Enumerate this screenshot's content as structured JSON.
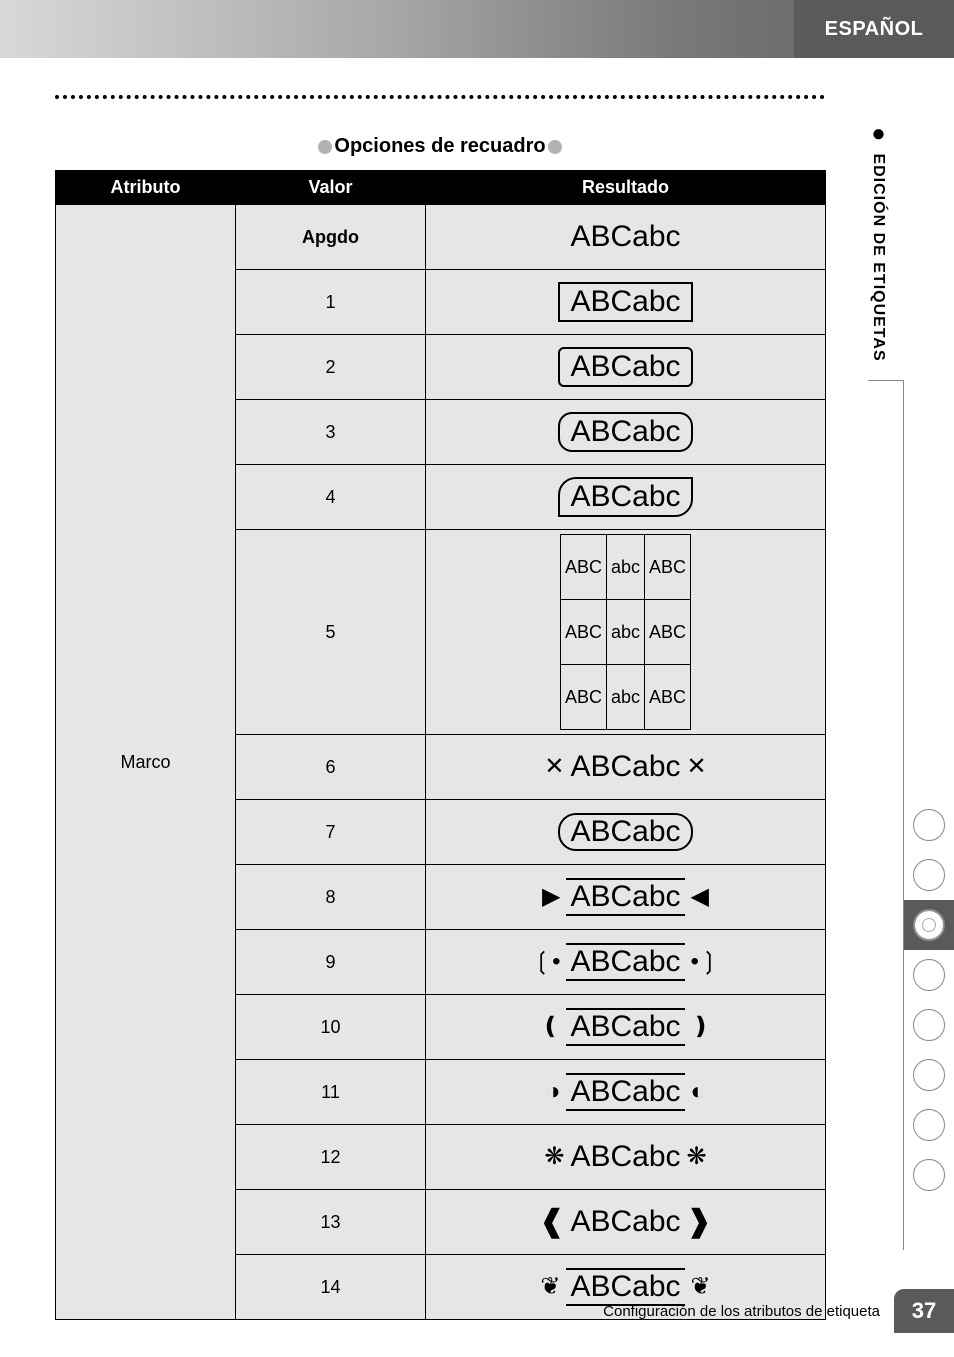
{
  "language_tab": "ESPAÑOL",
  "side_section_label": "EDICIÓN DE ETIQUETAS",
  "section_title": "Opciones de recuadro",
  "table": {
    "headers": {
      "attribute": "Atributo",
      "value": "Valor",
      "result": "Resultado"
    },
    "attribute_label": "Marco",
    "sample_text": "ABCabc",
    "mini_cells": [
      "ABC",
      "abc",
      "ABC",
      "ABC",
      "abc",
      "ABC",
      "ABC",
      "abc",
      "ABC"
    ],
    "rows": [
      {
        "value": "Apgdo",
        "bold": true,
        "style": "none"
      },
      {
        "value": "1",
        "style": "f1"
      },
      {
        "value": "2",
        "style": "f2"
      },
      {
        "value": "3",
        "style": "f3"
      },
      {
        "value": "4",
        "style": "f4"
      },
      {
        "value": "5",
        "style": "grid"
      },
      {
        "value": "6",
        "style": "deco",
        "left": "✕",
        "right": "✕",
        "border": "plain"
      },
      {
        "value": "7",
        "style": "deco",
        "left": "",
        "right": "",
        "border": "round"
      },
      {
        "value": "8",
        "style": "deco",
        "left": "▶",
        "right": "◀",
        "border": "topbot"
      },
      {
        "value": "9",
        "style": "deco",
        "left": "❲•",
        "right": "•❳",
        "border": "topbot"
      },
      {
        "value": "10",
        "style": "deco",
        "left": "❪",
        "right": "❫",
        "border": "wavy"
      },
      {
        "value": "11",
        "style": "deco",
        "left": "◑",
        "right": "◐",
        "border": "topbot"
      },
      {
        "value": "12",
        "style": "deco",
        "left": "❋",
        "right": "❋",
        "border": "none"
      },
      {
        "value": "13",
        "style": "deco",
        "left": "❰",
        "right": "❱",
        "border": "boldcap",
        "boldcap": true
      },
      {
        "value": "14",
        "style": "deco",
        "left": "❦",
        "right": "❦",
        "border": "topbot"
      }
    ]
  },
  "thumb_tabs": {
    "count": 8,
    "active_index": 2
  },
  "footer_text": "Configuración de los atributos de etiqueta",
  "page_number": "37",
  "colors": {
    "header_bg": "#000000",
    "header_fg": "#ffffff",
    "cell_bg": "#e6e6e6",
    "tab_bg": "#5a5a5a"
  }
}
